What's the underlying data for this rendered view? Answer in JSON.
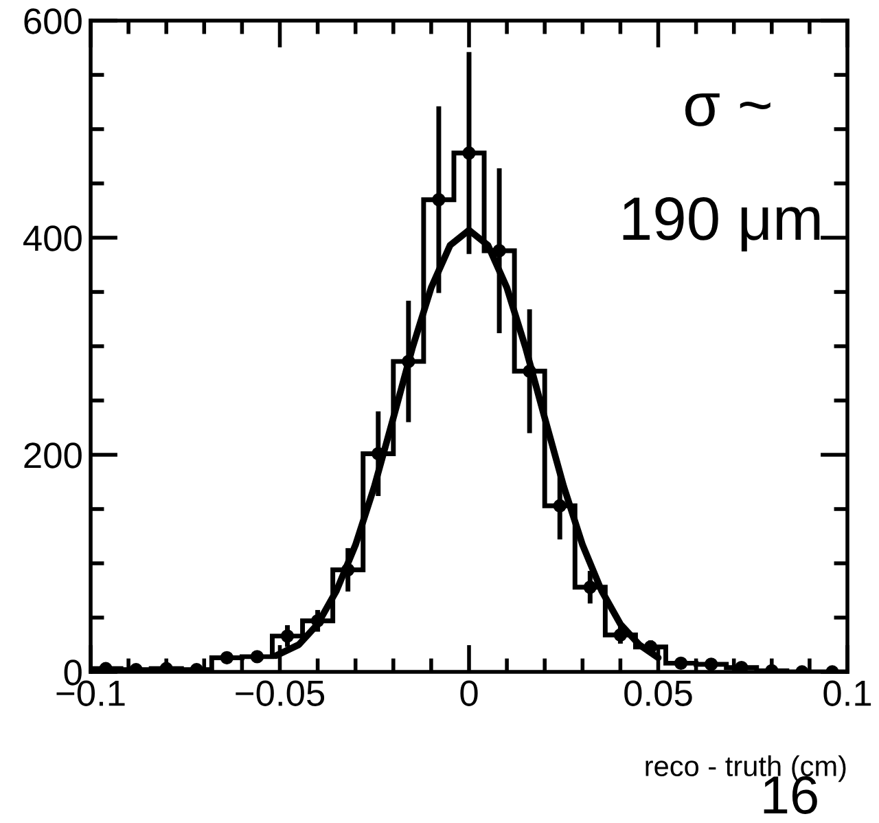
{
  "chart_data": {
    "type": "histogram",
    "xlabel": "reco - truth (cm)",
    "xlim": [
      -0.1,
      0.1
    ],
    "ylim": [
      0,
      600
    ],
    "xticks": [
      {
        "value": -0.1,
        "label": "−0.1"
      },
      {
        "value": -0.09,
        "label": null
      },
      {
        "value": -0.08,
        "label": null
      },
      {
        "value": -0.07,
        "label": null
      },
      {
        "value": -0.06,
        "label": null
      },
      {
        "value": -0.05,
        "label": "−0.05"
      },
      {
        "value": -0.04,
        "label": null
      },
      {
        "value": -0.03,
        "label": null
      },
      {
        "value": -0.02,
        "label": null
      },
      {
        "value": -0.01,
        "label": null
      },
      0,
      {
        "value": 0.01,
        "label": null
      },
      {
        "value": 0.02,
        "label": null
      },
      {
        "value": 0.03,
        "label": null
      },
      {
        "value": 0.04,
        "label": null
      },
      0.05,
      {
        "value": 0.06,
        "label": null
      },
      {
        "value": 0.07,
        "label": null
      },
      {
        "value": 0.08,
        "label": null
      },
      {
        "value": 0.09,
        "label": null
      },
      0.1
    ],
    "yticks": [
      0,
      {
        "value": 50,
        "label": null
      },
      {
        "value": 100,
        "label": null
      },
      {
        "value": 150,
        "label": null
      },
      200,
      {
        "value": 250,
        "label": null
      },
      {
        "value": 300,
        "label": null
      },
      {
        "value": 350,
        "label": null
      },
      400,
      {
        "value": 450,
        "label": null
      },
      {
        "value": 500,
        "label": null
      },
      {
        "value": 550,
        "label": null
      },
      600
    ],
    "grid": false,
    "series": [
      {
        "color": "#000000",
        "bins": [
          -0.1,
          -0.092,
          -0.084,
          -0.076,
          -0.068,
          -0.06,
          -0.052,
          -0.044,
          -0.036,
          -0.028,
          -0.02,
          -0.012,
          -0.004,
          0.004,
          0.012,
          0.02,
          0.028,
          0.036,
          0.044,
          0.052,
          0.06,
          0.068,
          0.076,
          0.084,
          0.092,
          0.1
        ],
        "values": [
          3,
          2,
          3,
          2,
          13,
          14,
          33,
          47,
          94,
          201,
          286,
          435,
          478,
          388,
          277,
          153,
          78,
          34,
          23,
          8,
          7,
          4,
          1,
          0,
          0
        ]
      },
      {
        "type": "scatter",
        "color": "#000000",
        "marker": "circle",
        "x": [
          -0.096,
          -0.088,
          -0.08,
          -0.072,
          -0.064,
          -0.056,
          -0.048,
          -0.04,
          -0.032,
          -0.024,
          -0.016,
          -0.008,
          0,
          0.008,
          0.016,
          0.024,
          0.032,
          0.04,
          0.048,
          0.056,
          0.064,
          0.072,
          0.08,
          0.088,
          0.096
        ],
        "values": [
          3,
          2,
          3,
          2,
          13,
          14,
          33,
          47,
          94,
          201,
          286,
          435,
          478,
          388,
          277,
          153,
          78,
          34,
          23,
          8,
          7,
          4,
          1,
          0,
          0
        ],
        "errors": [
          null,
          null,
          null,
          null,
          null,
          null,
          10,
          10,
          20,
          39,
          56,
          86,
          93,
          76,
          57,
          31,
          15,
          8,
          6,
          null,
          null,
          null,
          null,
          null,
          null
        ]
      },
      {
        "type": "line",
        "color": "#000000",
        "line_style": "solid",
        "marker": "none",
        "x": [
          -0.051,
          -0.045,
          -0.04,
          -0.035,
          -0.03,
          -0.025,
          -0.02,
          -0.015,
          -0.01,
          -0.005,
          0,
          0.005,
          0.01,
          0.015,
          0.02,
          0.025,
          0.03,
          0.035,
          0.04,
          0.045,
          0.05
        ],
        "values": [
          15,
          25,
          44,
          75,
          117,
          171,
          234,
          298,
          354,
          393,
          407,
          393,
          354,
          298,
          234,
          171,
          117,
          75,
          44,
          25,
          13
        ]
      }
    ],
    "annotations": [
      "σ ~",
      "190 μm",
      "16"
    ]
  }
}
